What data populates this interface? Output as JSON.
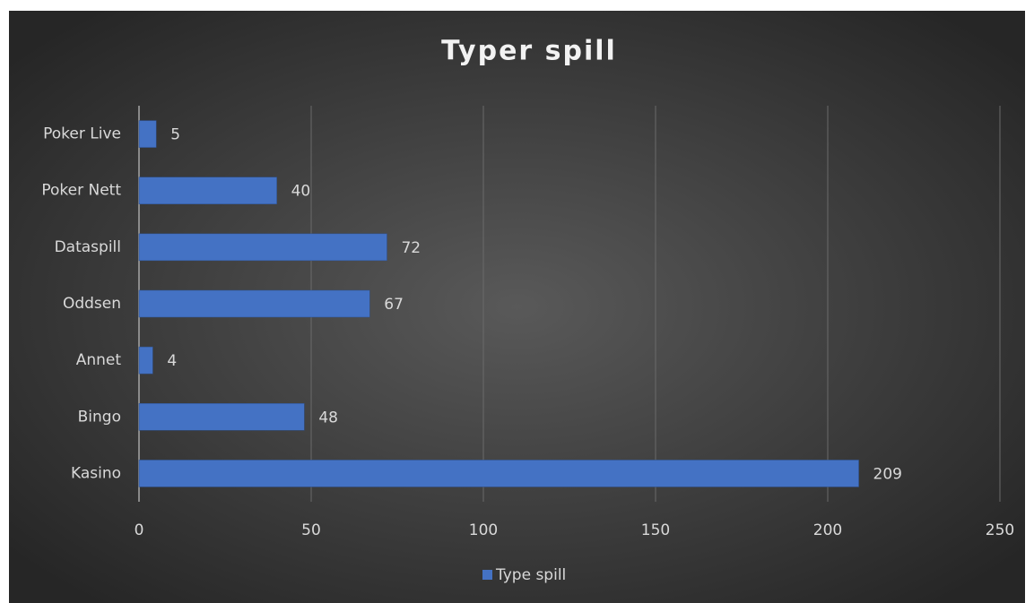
{
  "chart_data": {
    "type": "bar",
    "orientation": "horizontal",
    "title": "Typer spill",
    "categories": [
      "Poker Live",
      "Poker Nett",
      "Dataspill",
      "Oddsen",
      "Annet",
      "Bingo",
      "Kasino"
    ],
    "series": [
      {
        "name": "Type spill",
        "color": "#4472c4",
        "values": [
          5,
          40,
          72,
          67,
          4,
          48,
          209
        ]
      }
    ],
    "xlim": [
      0,
      250
    ],
    "xticks": [
      0,
      50,
      100,
      150,
      200,
      250
    ],
    "grid": true,
    "legend": "bottom"
  }
}
